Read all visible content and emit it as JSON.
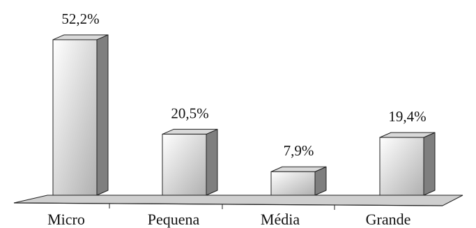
{
  "chart_data": {
    "type": "bar",
    "style": "3d-column",
    "categories": [
      "Micro",
      "Pequena",
      "Média",
      "Grande"
    ],
    "values": [
      52.2,
      20.5,
      7.9,
      19.4
    ],
    "value_labels": [
      "52,2%",
      "20,5%",
      "7,9%",
      "19,4%"
    ],
    "title": "",
    "xlabel": "",
    "ylabel": "",
    "ylim": [
      0,
      55
    ],
    "grid": false,
    "legend": "none",
    "colors": {
      "front_light": "#ffffff",
      "front_dark": "#b0b0b0",
      "side": "#7f7f7f",
      "top": "#d9d9d9",
      "floor": "#cfcfcf",
      "edge": "#222222"
    }
  }
}
